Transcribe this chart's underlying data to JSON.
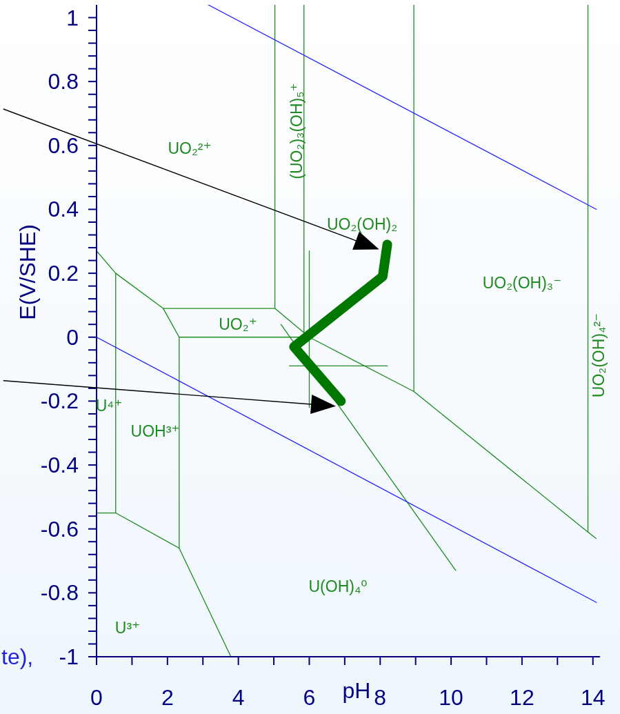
{
  "chart_data": {
    "type": "line",
    "xlabel": "pH",
    "ylabel": "E(V/SHE)",
    "xlim": [
      0,
      14.2
    ],
    "ylim": [
      -1,
      1.04
    ],
    "xticks": [
      0,
      {
        "value": 1,
        "label": null
      },
      2,
      {
        "value": 3,
        "label": null
      },
      4,
      {
        "value": 5,
        "label": null
      },
      6,
      {
        "value": 7,
        "label": null
      },
      8,
      {
        "value": 9,
        "label": null
      },
      10,
      {
        "value": 11,
        "label": null
      },
      12,
      {
        "value": 13,
        "label": null
      },
      14
    ],
    "yticks": [
      -1,
      {
        "value": -0.96,
        "label": null
      },
      {
        "value": -0.92,
        "label": null
      },
      {
        "value": -0.88,
        "label": null
      },
      {
        "value": -0.84,
        "label": null
      },
      -0.8,
      {
        "value": -0.76,
        "label": null
      },
      {
        "value": -0.72,
        "label": null
      },
      {
        "value": -0.68,
        "label": null
      },
      {
        "value": -0.64,
        "label": null
      },
      -0.6,
      {
        "value": -0.56,
        "label": null
      },
      {
        "value": -0.52,
        "label": null
      },
      {
        "value": -0.48,
        "label": null
      },
      {
        "value": -0.44,
        "label": null
      },
      -0.4,
      {
        "value": -0.36,
        "label": null
      },
      {
        "value": -0.32,
        "label": null
      },
      {
        "value": -0.28,
        "label": null
      },
      {
        "value": -0.24,
        "label": null
      },
      -0.2,
      {
        "value": -0.16,
        "label": null
      },
      {
        "value": -0.12,
        "label": null
      },
      {
        "value": -0.08,
        "label": null
      },
      {
        "value": -0.04,
        "label": null
      },
      0,
      {
        "value": 0.04,
        "label": null
      },
      {
        "value": 0.08,
        "label": null
      },
      {
        "value": 0.12,
        "label": null
      },
      {
        "value": 0.16,
        "label": null
      },
      0.2,
      {
        "value": 0.24,
        "label": null
      },
      {
        "value": 0.28,
        "label": null
      },
      {
        "value": 0.32,
        "label": null
      },
      {
        "value": 0.36,
        "label": null
      },
      0.4,
      {
        "value": 0.44,
        "label": null
      },
      {
        "value": 0.48,
        "label": null
      },
      {
        "value": 0.52,
        "label": null
      },
      {
        "value": 0.56,
        "label": null
      },
      0.6,
      {
        "value": 0.64,
        "label": null
      },
      {
        "value": 0.68,
        "label": null
      },
      {
        "value": 0.72,
        "label": null
      },
      {
        "value": 0.76,
        "label": null
      },
      0.8,
      {
        "value": 0.84,
        "label": null
      },
      {
        "value": 0.88,
        "label": null
      },
      {
        "value": 0.92,
        "label": null
      },
      {
        "value": 0.96,
        "label": null
      },
      1
    ],
    "series": [
      {
        "color": "#1f8a1f",
        "x": [
          0,
          0.54,
          1.88,
          2.33,
          5.85
        ],
        "values": [
          0.27,
          0.2,
          0.09,
          0,
          0
        ]
      },
      {
        "color": "#1f8a1f",
        "x": [
          1.88,
          5.03,
          6.0,
          8.95,
          13.86,
          14.09
        ],
        "values": [
          0.09,
          0.09,
          0,
          -0.17,
          -0.61,
          -0.63
        ]
      },
      {
        "color": "#1f8a1f",
        "x": [
          5.03,
          5.03
        ],
        "values": [
          0.09,
          1.04
        ]
      },
      {
        "color": "#1f8a1f",
        "x": [
          5.85,
          5.85
        ],
        "values": [
          0,
          1.04
        ]
      },
      {
        "color": "#1f8a1f",
        "x": [
          6.0,
          6.0
        ],
        "values": [
          0.27,
          -0.22
        ]
      },
      {
        "color": "#1f8a1f",
        "x": [
          8.95,
          8.95
        ],
        "values": [
          -0.17,
          1.04
        ]
      },
      {
        "color": "#1f8a1f",
        "x": [
          13.86,
          13.86
        ],
        "values": [
          -0.61,
          1.04
        ]
      },
      {
        "color": "#1f8a1f",
        "x": [
          5.44,
          8.2
        ],
        "values": [
          -0.09,
          -0.09
        ]
      },
      {
        "color": "#1f8a1f",
        "x": [
          5.2,
          10.13
        ],
        "values": [
          0.04,
          -0.73
        ]
      },
      {
        "color": "#1f8a1f",
        "x": [
          0.54,
          0.54
        ],
        "values": [
          0.2,
          -0.55
        ]
      },
      {
        "color": "#1f8a1f",
        "x": [
          0,
          0.54,
          2.33,
          3.79
        ],
        "values": [
          -0.55,
          -0.55,
          -0.66,
          -1
        ]
      },
      {
        "color": "#1f8a1f",
        "x": [
          2.33,
          2.33
        ],
        "values": [
          0,
          -0.66
        ]
      },
      {
        "color": "#2222ff",
        "x": [
          3.15,
          14.1
        ],
        "values": [
          1.04,
          0.4
        ]
      },
      {
        "color": "#2222ff",
        "x": [
          0,
          14.1
        ],
        "values": [
          0,
          -0.83
        ]
      },
      {
        "color": "#007800",
        "x": [
          8.2,
          8.07,
          5.57,
          6.89
        ],
        "values": [
          0.29,
          0.19,
          -0.03,
          -0.2
        ]
      }
    ],
    "annotations": [
      "UO₂²⁺",
      "(UO₂)₃(OH)₅⁺",
      "UO₂(OH)₂",
      "UO₂⁺",
      "UO₂(OH)₃⁻",
      "UO₂(OH)₄²⁻",
      "U⁴⁺",
      "UOH³⁺",
      "U(OH)₄⁰",
      "U³⁺",
      "te),"
    ]
  }
}
